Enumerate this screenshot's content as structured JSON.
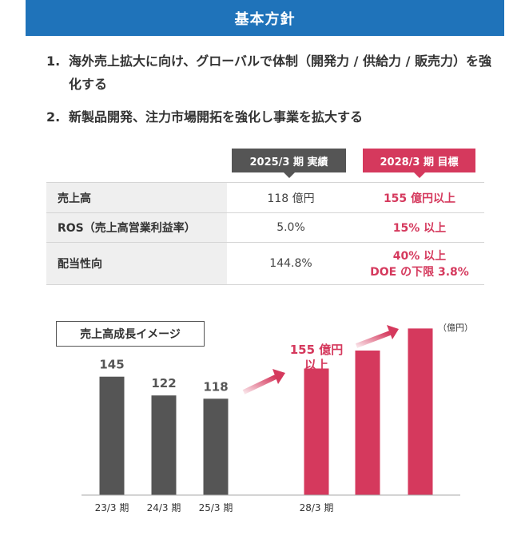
{
  "header": {
    "title": "基本方針"
  },
  "policies": [
    {
      "num": "1.",
      "text": "海外売上拡大に向け、グローバルで体制（開発力 / 供給力 / 販売力）を強化する"
    },
    {
      "num": "2.",
      "text": "新製品開発、注力市場開拓を強化し事業を拡大する"
    }
  ],
  "table": {
    "col_actual": "2025/3 期  実績",
    "col_target": "2028/3 期  目標",
    "rows": [
      {
        "label": "売上高",
        "actual": "118 億円",
        "target": "155 億円以上",
        "target2": ""
      },
      {
        "label": "ROS（売上高営業利益率）",
        "actual": "5.0%",
        "target": "15% 以上",
        "target2": ""
      },
      {
        "label": "配当性向",
        "actual": "144.8%",
        "target": "40% 以上",
        "target2": "DOE の下限 3.8%"
      }
    ]
  },
  "colors": {
    "header": "#1f73ba",
    "actual": "#555555",
    "target": "#d5395d"
  },
  "chart_data": {
    "type": "bar",
    "title": "売上高成長イメージ",
    "unit": "（億円）",
    "categories": [
      "23/3 期",
      "24/3 期",
      "25/3 期",
      "",
      "28/3 期",
      "",
      ""
    ],
    "values": [
      145,
      122,
      118,
      null,
      155,
      177,
      204
    ],
    "value_labels": [
      "145",
      "122",
      "118",
      "",
      "",
      "",
      ""
    ],
    "annotation_line1": "155 億円",
    "annotation_line2": "以上",
    "ylim": [
      0,
      220
    ],
    "grid": false
  }
}
